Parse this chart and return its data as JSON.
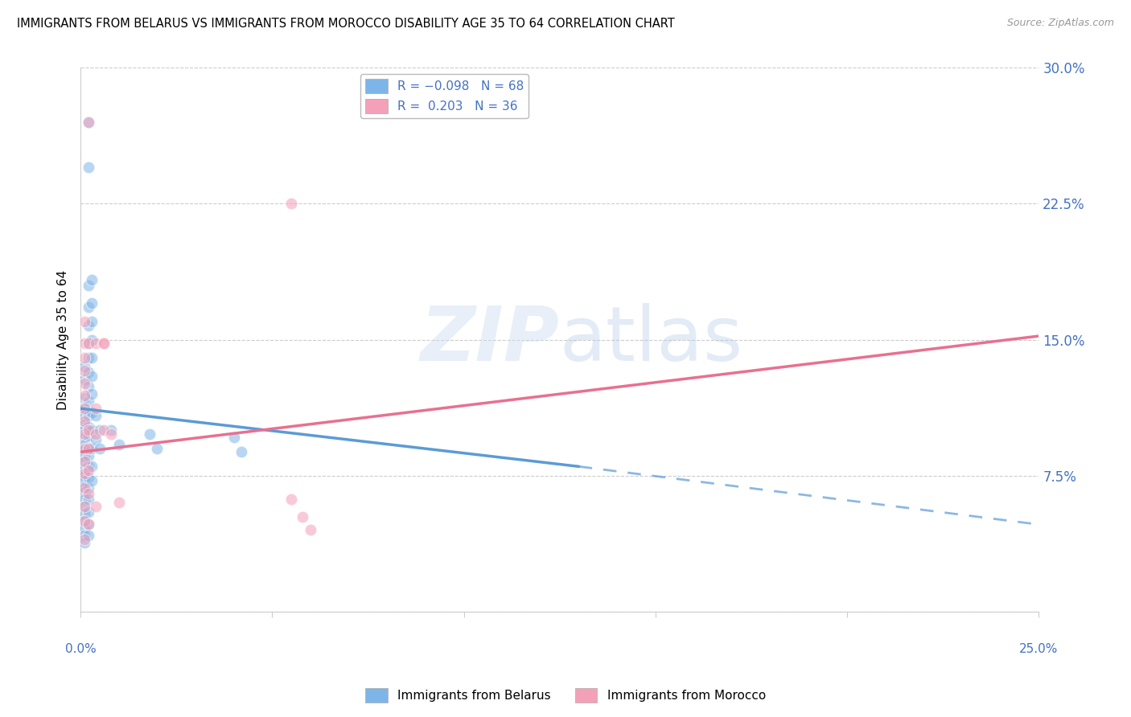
{
  "title": "IMMIGRANTS FROM BELARUS VS IMMIGRANTS FROM MOROCCO DISABILITY AGE 35 TO 64 CORRELATION CHART",
  "source": "Source: ZipAtlas.com",
  "ylabel": "Disability Age 35 to 64",
  "yticks": [
    0.0,
    0.075,
    0.15,
    0.225,
    0.3
  ],
  "ytick_labels": [
    "",
    "7.5%",
    "15.0%",
    "22.5%",
    "30.0%"
  ],
  "xlim": [
    0.0,
    0.25
  ],
  "ylim": [
    0.0,
    0.3
  ],
  "watermark": "ZIPatlas",
  "belarus_scatter": [
    [
      0.001,
      0.135
    ],
    [
      0.001,
      0.128
    ],
    [
      0.001,
      0.118
    ],
    [
      0.001,
      0.112
    ],
    [
      0.001,
      0.108
    ],
    [
      0.001,
      0.103
    ],
    [
      0.001,
      0.1
    ],
    [
      0.001,
      0.096
    ],
    [
      0.001,
      0.092
    ],
    [
      0.001,
      0.089
    ],
    [
      0.001,
      0.086
    ],
    [
      0.001,
      0.083
    ],
    [
      0.001,
      0.079
    ],
    [
      0.001,
      0.075
    ],
    [
      0.001,
      0.072
    ],
    [
      0.001,
      0.069
    ],
    [
      0.001,
      0.066
    ],
    [
      0.001,
      0.062
    ],
    [
      0.001,
      0.058
    ],
    [
      0.001,
      0.054
    ],
    [
      0.001,
      0.05
    ],
    [
      0.001,
      0.046
    ],
    [
      0.001,
      0.042
    ],
    [
      0.001,
      0.038
    ],
    [
      0.002,
      0.27
    ],
    [
      0.002,
      0.245
    ],
    [
      0.002,
      0.18
    ],
    [
      0.002,
      0.168
    ],
    [
      0.002,
      0.158
    ],
    [
      0.002,
      0.148
    ],
    [
      0.002,
      0.14
    ],
    [
      0.002,
      0.132
    ],
    [
      0.002,
      0.124
    ],
    [
      0.002,
      0.116
    ],
    [
      0.002,
      0.108
    ],
    [
      0.002,
      0.102
    ],
    [
      0.002,
      0.097
    ],
    [
      0.002,
      0.09
    ],
    [
      0.002,
      0.086
    ],
    [
      0.002,
      0.08
    ],
    [
      0.002,
      0.074
    ],
    [
      0.002,
      0.068
    ],
    [
      0.002,
      0.062
    ],
    [
      0.002,
      0.055
    ],
    [
      0.002,
      0.048
    ],
    [
      0.002,
      0.042
    ],
    [
      0.003,
      0.183
    ],
    [
      0.003,
      0.17
    ],
    [
      0.003,
      0.16
    ],
    [
      0.003,
      0.15
    ],
    [
      0.003,
      0.14
    ],
    [
      0.003,
      0.13
    ],
    [
      0.003,
      0.12
    ],
    [
      0.003,
      0.11
    ],
    [
      0.003,
      0.1
    ],
    [
      0.003,
      0.09
    ],
    [
      0.003,
      0.08
    ],
    [
      0.003,
      0.072
    ],
    [
      0.004,
      0.108
    ],
    [
      0.004,
      0.095
    ],
    [
      0.005,
      0.1
    ],
    [
      0.005,
      0.09
    ],
    [
      0.008,
      0.1
    ],
    [
      0.01,
      0.092
    ],
    [
      0.018,
      0.098
    ],
    [
      0.02,
      0.09
    ],
    [
      0.04,
      0.096
    ],
    [
      0.042,
      0.088
    ]
  ],
  "morocco_scatter": [
    [
      0.001,
      0.16
    ],
    [
      0.001,
      0.148
    ],
    [
      0.001,
      0.14
    ],
    [
      0.001,
      0.133
    ],
    [
      0.001,
      0.126
    ],
    [
      0.001,
      0.119
    ],
    [
      0.001,
      0.112
    ],
    [
      0.001,
      0.105
    ],
    [
      0.001,
      0.098
    ],
    [
      0.001,
      0.09
    ],
    [
      0.001,
      0.083
    ],
    [
      0.001,
      0.076
    ],
    [
      0.001,
      0.068
    ],
    [
      0.001,
      0.058
    ],
    [
      0.001,
      0.05
    ],
    [
      0.001,
      0.04
    ],
    [
      0.002,
      0.27
    ],
    [
      0.002,
      0.148
    ],
    [
      0.002,
      0.1
    ],
    [
      0.002,
      0.09
    ],
    [
      0.002,
      0.078
    ],
    [
      0.002,
      0.065
    ],
    [
      0.002,
      0.048
    ],
    [
      0.004,
      0.148
    ],
    [
      0.004,
      0.112
    ],
    [
      0.004,
      0.098
    ],
    [
      0.004,
      0.058
    ],
    [
      0.006,
      0.148
    ],
    [
      0.006,
      0.1
    ],
    [
      0.006,
      0.148
    ],
    [
      0.008,
      0.098
    ],
    [
      0.01,
      0.06
    ],
    [
      0.055,
      0.225
    ],
    [
      0.055,
      0.062
    ],
    [
      0.058,
      0.052
    ],
    [
      0.06,
      0.045
    ]
  ],
  "belarus_line_solid": {
    "x": [
      0.0,
      0.13
    ],
    "y": [
      0.112,
      0.08
    ]
  },
  "belarus_line_dashed": {
    "x": [
      0.13,
      0.25
    ],
    "y": [
      0.08,
      0.048
    ]
  },
  "morocco_line_solid": {
    "x": [
      0.0,
      0.25
    ],
    "y": [
      0.088,
      0.152
    ]
  },
  "blue_color": "#5b9bd5",
  "pink_color": "#f08080",
  "blue_scatter": "#7eb5e8",
  "pink_scatter": "#f4a0b8",
  "axis_color": "#4472C4",
  "grid_color": "#cccccc",
  "title_fontsize": 10.5,
  "source_text": "Source: ZipAtlas.com"
}
